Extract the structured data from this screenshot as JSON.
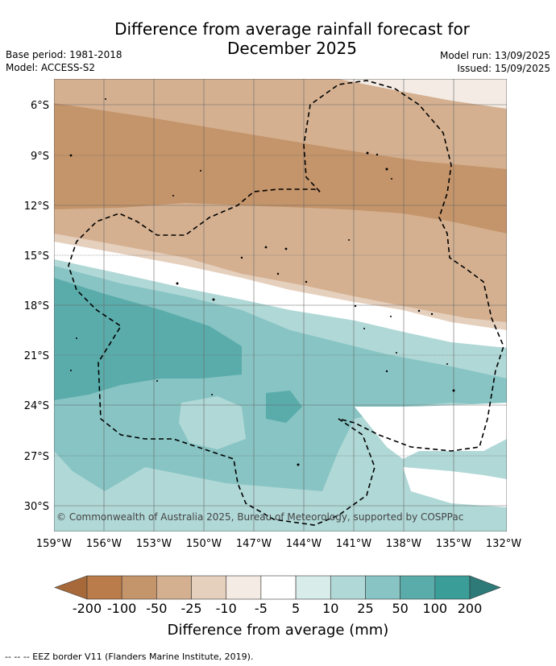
{
  "title": "Difference from average rainfall forecast for December 2025",
  "meta_left": {
    "base_period": "Base period: 1981-2018",
    "model": "Model: ACCESS-S2"
  },
  "meta_right": {
    "model_run": "Model run: 13/09/2025",
    "issued": "Issued: 15/09/2025"
  },
  "lat_labels": [
    "6°S",
    "9°S",
    "12°S",
    "15°S",
    "18°S",
    "21°S",
    "24°S",
    "27°S",
    "30°S"
  ],
  "lon_labels": [
    "159°W",
    "156°W",
    "153°W",
    "150°W",
    "147°W",
    "144°W",
    "141°W",
    "138°W",
    "135°W",
    "132°W"
  ],
  "credit": "© Commonwealth of Australia 2025, Bureau of Meteorology, supported by COSPPac",
  "colorbar": {
    "label": "Difference from average (mm)",
    "ticks": [
      "-200",
      "-100",
      "-50",
      "-25",
      "-10",
      "-5",
      "5",
      "10",
      "25",
      "50",
      "100",
      "200"
    ],
    "colors": [
      "#a8693a",
      "#b97c4a",
      "#c4946a",
      "#d4b090",
      "#e5cfbd",
      "#f3ebe4",
      "#ffffff",
      "#d8ecea",
      "#b0d8d7",
      "#87c4c3",
      "#5aacab",
      "#3a9d98",
      "#2d7a78"
    ]
  },
  "footnote": "-- -- -- EEZ border V11 (Flanders Marine Institute, 2019)."
}
